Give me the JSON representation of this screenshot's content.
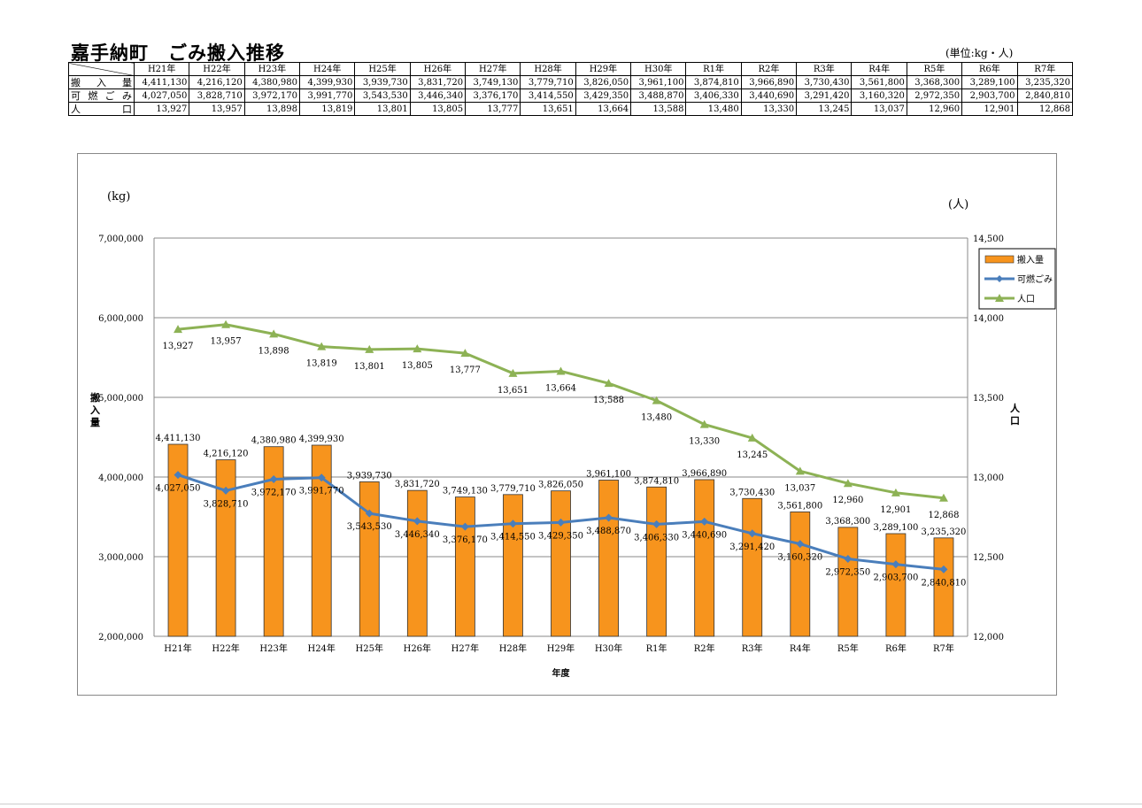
{
  "page": {
    "title": "嘉手納町　ごみ搬入推移",
    "unit": "(単位:kg・人)"
  },
  "table": {
    "years": [
      "H21年",
      "H22年",
      "H23年",
      "H24年",
      "H25年",
      "H26年",
      "H27年",
      "H28年",
      "H29年",
      "H30年",
      "R1年",
      "R2年",
      "R3年",
      "R4年",
      "R5年",
      "R6年",
      "R7年"
    ],
    "rows": [
      {
        "label_chars": [
          "搬",
          "入",
          "量"
        ],
        "values": [
          "4,411,130",
          "4,216,120",
          "4,380,980",
          "4,399,930",
          "3,939,730",
          "3,831,720",
          "3,749,130",
          "3,779,710",
          "3,826,050",
          "3,961,100",
          "3,874,810",
          "3,966,890",
          "3,730,430",
          "3,561,800",
          "3,368,300",
          "3,289,100",
          "3,235,320"
        ]
      },
      {
        "label_chars": [
          "可",
          "燃",
          "ご",
          "み"
        ],
        "values": [
          "4,027,050",
          "3,828,710",
          "3,972,170",
          "3,991,770",
          "3,543,530",
          "3,446,340",
          "3,376,170",
          "3,414,550",
          "3,429,350",
          "3,488,870",
          "3,406,330",
          "3,440,690",
          "3,291,420",
          "3,160,320",
          "2,972,350",
          "2,903,700",
          "2,840,810"
        ]
      },
      {
        "label_chars": [
          "人",
          "口"
        ],
        "values": [
          "13,927",
          "13,957",
          "13,898",
          "13,819",
          "13,801",
          "13,805",
          "13,777",
          "13,651",
          "13,664",
          "13,588",
          "13,480",
          "13,330",
          "13,245",
          "13,037",
          "12,960",
          "12,901",
          "12,868"
        ]
      }
    ]
  },
  "chart_data": {
    "type": "bar",
    "categories": [
      "H21年",
      "H22年",
      "H23年",
      "H24年",
      "H25年",
      "H26年",
      "H27年",
      "H28年",
      "H29年",
      "H30年",
      "R1年",
      "R2年",
      "R3年",
      "R4年",
      "R5年",
      "R6年",
      "R7年"
    ],
    "series": [
      {
        "name": "搬入量",
        "type": "bar",
        "axis": "left",
        "color": "#F7941D",
        "values": [
          4411130,
          4216120,
          4380980,
          4399930,
          3939730,
          3831720,
          3749130,
          3779710,
          3826050,
          3961100,
          3874810,
          3966890,
          3730430,
          3561800,
          3368300,
          3289100,
          3235320
        ]
      },
      {
        "name": "可燃ごみ",
        "type": "line",
        "axis": "left",
        "color": "#4A7EBB",
        "marker": "diamond",
        "values": [
          4027050,
          3828710,
          3972170,
          3991770,
          3543530,
          3446340,
          3376170,
          3414550,
          3429350,
          3488870,
          3406330,
          3440690,
          3291420,
          3160320,
          2972350,
          2903700,
          2840810
        ]
      },
      {
        "name": "人口",
        "type": "line",
        "axis": "right",
        "color": "#8DB255",
        "marker": "triangle",
        "values": [
          13927,
          13957,
          13898,
          13819,
          13801,
          13805,
          13777,
          13651,
          13664,
          13588,
          13480,
          13330,
          13245,
          13037,
          12960,
          12901,
          12868
        ]
      }
    ],
    "y_left": {
      "label": "(kg)",
      "title_chars": [
        "搬",
        "入",
        "量"
      ],
      "ylim": [
        2000000,
        7000000
      ],
      "ticks": [
        "2,000,000",
        "3,000,000",
        "4,000,000",
        "5,000,000",
        "6,000,000",
        "7,000,000"
      ]
    },
    "y_right": {
      "label": "(人)",
      "title_chars": [
        "人",
        "口"
      ],
      "ylim": [
        12000,
        14500
      ],
      "ticks": [
        "12,000",
        "12,500",
        "13,000",
        "13,500",
        "14,000",
        "14,500"
      ]
    },
    "xlabel": "年度",
    "grid": true,
    "legend": "top-right"
  }
}
